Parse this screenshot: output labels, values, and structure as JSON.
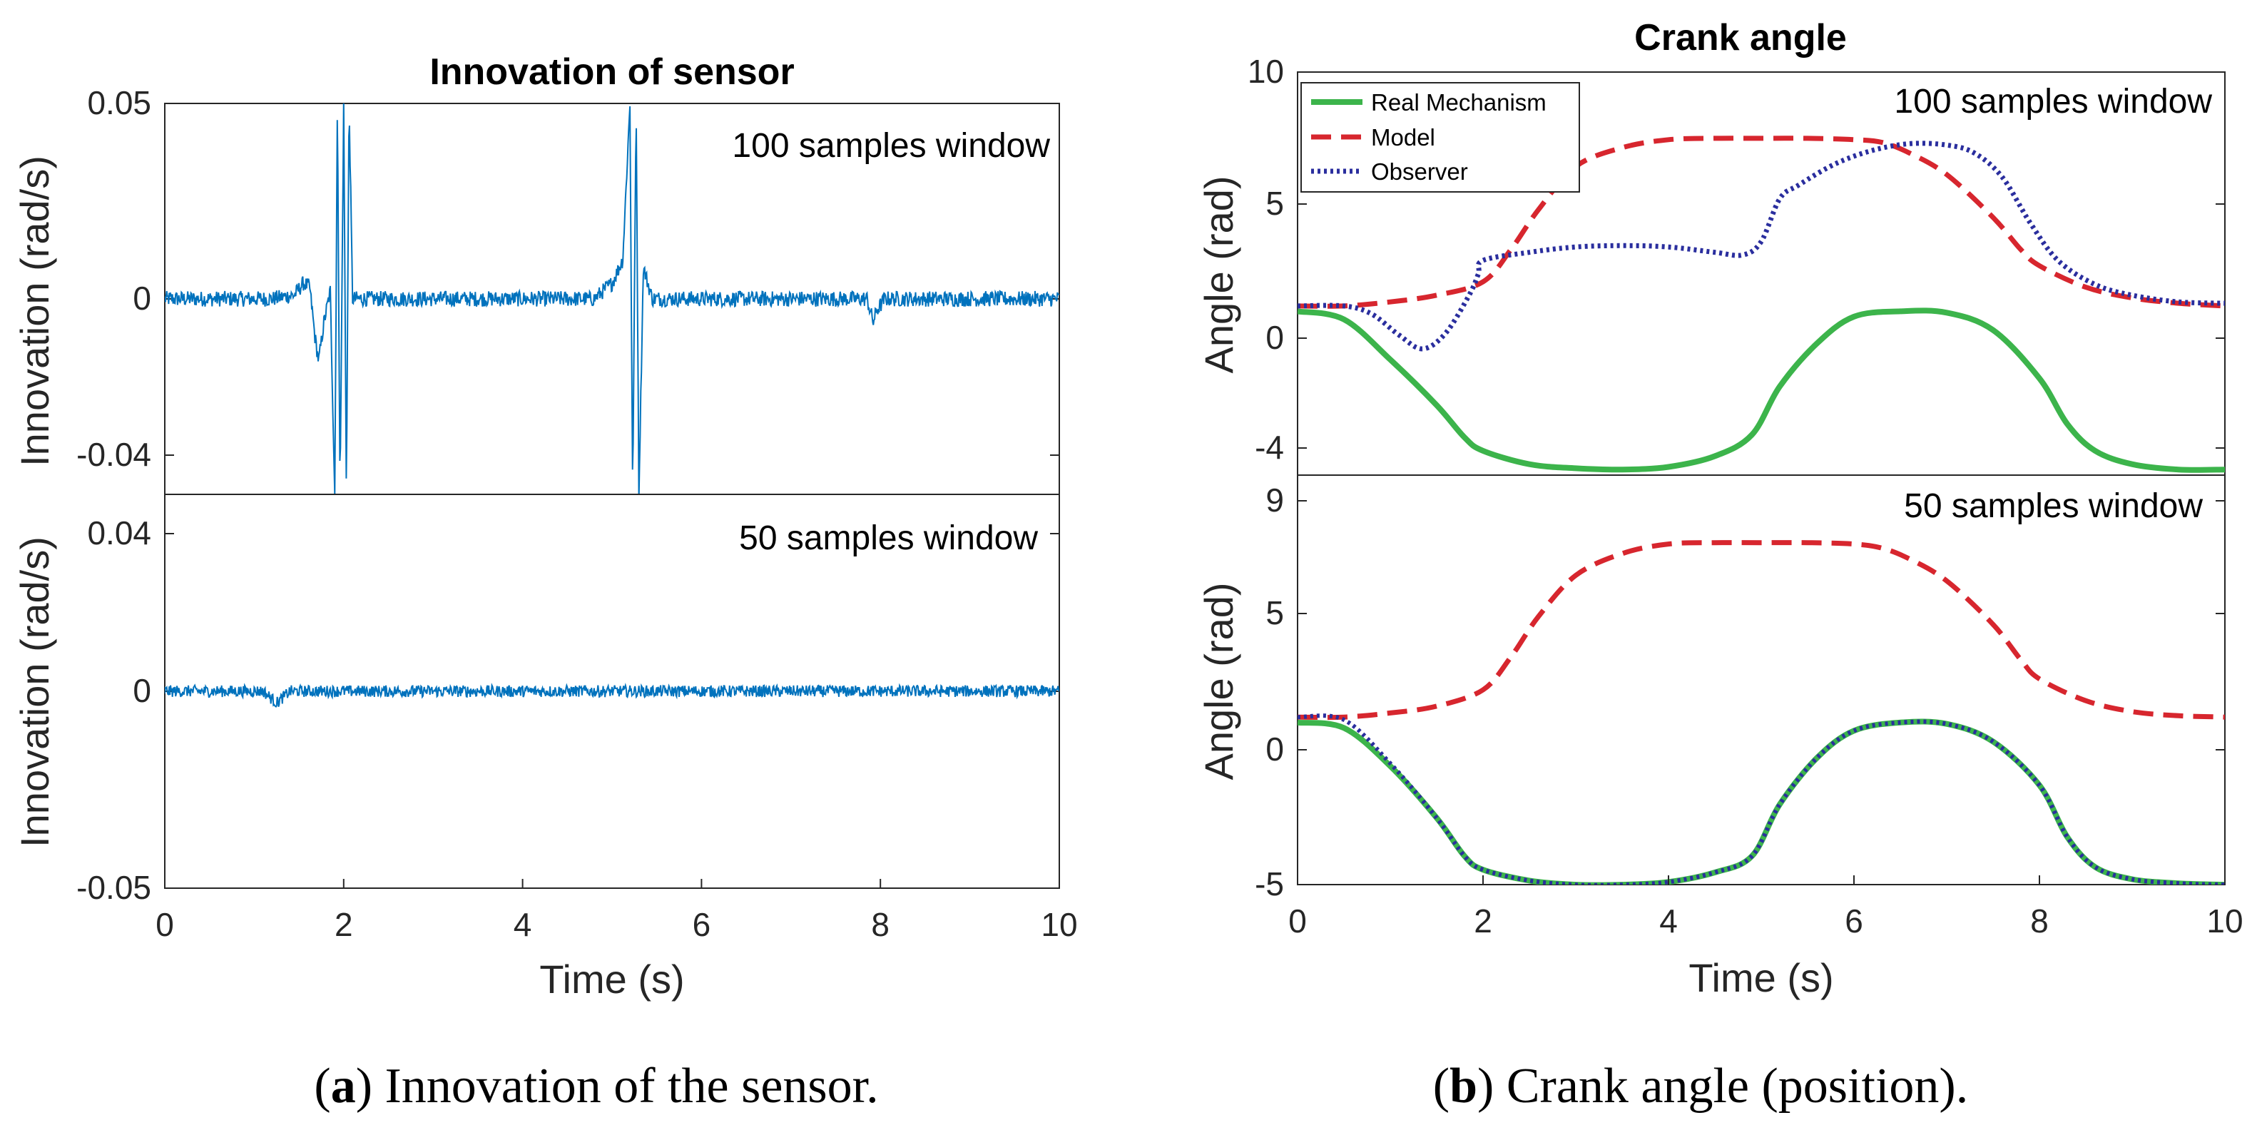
{
  "figure_a": {
    "caption_letter": "a",
    "caption_text": "Innovation of the sensor.",
    "title": "Innovation of sensor",
    "xlabel": "Time (s)",
    "x_ticks": [
      "0",
      "2",
      "4",
      "6",
      "8",
      "10"
    ],
    "top": {
      "window_label": "100 samples window",
      "ylabel": "Innovation (rad/s)",
      "y_ticks": [
        "0.05",
        "0",
        "-0.04"
      ]
    },
    "bottom": {
      "window_label": "50 samples window",
      "ylabel": "Innovation (rad/s)",
      "y_ticks": [
        "0.04",
        "0",
        "-0.05"
      ]
    }
  },
  "figure_b": {
    "caption_letter": "b",
    "caption_text": "Crank angle (position).",
    "title": "Crank angle",
    "xlabel": "Time (s)",
    "x_ticks": [
      "0",
      "2",
      "4",
      "6",
      "8",
      "10"
    ],
    "legend": [
      "Real Mechanism",
      "Model",
      "Observer"
    ],
    "top": {
      "window_label": "100 samples window",
      "ylabel": "Angle (rad)",
      "y_ticks": [
        "10",
        "5",
        "0",
        "-4"
      ]
    },
    "bottom": {
      "window_label": "50 samples window",
      "ylabel": "Angle (rad)",
      "y_ticks": [
        "9",
        "5",
        "0",
        "-5"
      ]
    }
  },
  "colors": {
    "innovation": "#0072BD",
    "real": "#3CB44B",
    "model": "#D7262E",
    "observer": "#2A2E9E",
    "axes": "#262626",
    "ticks": "#262626"
  },
  "chart_data": [
    {
      "type": "line",
      "title": "Innovation of sensor",
      "subtitle": "100 samples window",
      "xlabel": "Time (s)",
      "ylabel": "Innovation (rad/s)",
      "xlim": [
        0,
        10
      ],
      "ylim": [
        -0.05,
        0.05
      ],
      "grid": false,
      "series": [
        {
          "name": "Innovation",
          "noise_amplitude": 0.002,
          "x": [
            0,
            1.2,
            1.45,
            1.55,
            1.62,
            1.68,
            1.72,
            1.78,
            1.85,
            1.9,
            1.93,
            1.96,
            2.0,
            2.03,
            2.06,
            2.1,
            2.2,
            4.8,
            5.0,
            5.12,
            5.2,
            5.23,
            5.27,
            5.3,
            5.35,
            5.45,
            7.85,
            7.92,
            7.96,
            8.05,
            10
          ],
          "y": [
            0,
            0,
            0.001,
            0.004,
            0.003,
            -0.01,
            -0.016,
            -0.006,
            0.002,
            -0.05,
            0.05,
            -0.05,
            0.05,
            -0.05,
            0.05,
            0,
            0,
            0,
            0.004,
            0.01,
            0.05,
            -0.05,
            0.05,
            -0.05,
            0.008,
            0,
            0,
            -0.006,
            -0.003,
            0,
            0
          ]
        }
      ]
    },
    {
      "type": "line",
      "title": "Innovation of sensor",
      "subtitle": "50 samples window",
      "xlabel": "Time (s)",
      "ylabel": "Innovation (rad/s)",
      "xlim": [
        0,
        10
      ],
      "ylim": [
        -0.05,
        0.05
      ],
      "grid": false,
      "series": [
        {
          "name": "Innovation",
          "noise_amplitude": 0.0015,
          "x": [
            0,
            1.1,
            1.2,
            1.25,
            1.3,
            1.4,
            10
          ],
          "y": [
            0,
            0,
            -0.002,
            -0.003,
            -0.002,
            0,
            0
          ]
        }
      ]
    },
    {
      "type": "line",
      "title": "Crank angle",
      "subtitle": "100 samples window",
      "xlabel": "Time (s)",
      "ylabel": "Angle (rad)",
      "xlim": [
        0,
        10
      ],
      "ylim": [
        -4.8,
        10
      ],
      "grid": false,
      "legend_position": "top-left",
      "series": [
        {
          "name": "Real Mechanism",
          "x": [
            0,
            0.5,
            1.0,
            1.5,
            1.8,
            2.0,
            2.5,
            3.0,
            3.5,
            4.0,
            4.5,
            4.9,
            5.2,
            5.6,
            6.0,
            6.5,
            7.0,
            7.5,
            8.0,
            8.3,
            8.6,
            9.0,
            9.5,
            10
          ],
          "y": [
            1.0,
            0.7,
            -0.8,
            -2.5,
            -3.7,
            -4.2,
            -4.7,
            -4.85,
            -4.9,
            -4.8,
            -4.4,
            -3.6,
            -1.8,
            -0.2,
            0.8,
            1.0,
            0.95,
            0.3,
            -1.5,
            -3.2,
            -4.2,
            -4.7,
            -4.9,
            -4.9
          ]
        },
        {
          "name": "Model",
          "x": [
            0,
            0.5,
            1.0,
            1.5,
            2.0,
            2.3,
            2.6,
            3.0,
            3.5,
            4.0,
            4.5,
            5.0,
            5.5,
            6.0,
            6.3,
            6.6,
            7.0,
            7.5,
            7.8,
            8.0,
            8.5,
            9.0,
            9.5,
            10
          ],
          "y": [
            1.2,
            1.2,
            1.35,
            1.6,
            2.1,
            3.3,
            4.8,
            6.4,
            7.1,
            7.4,
            7.45,
            7.45,
            7.45,
            7.4,
            7.3,
            6.9,
            6.1,
            4.5,
            3.3,
            2.7,
            1.9,
            1.5,
            1.3,
            1.2
          ]
        },
        {
          "name": "Observer",
          "x": [
            0,
            0.5,
            0.8,
            1.1,
            1.35,
            1.6,
            1.85,
            1.95,
            2.0,
            2.5,
            3.0,
            3.5,
            4.0,
            4.5,
            4.8,
            5.0,
            5.2,
            5.4,
            5.8,
            6.2,
            6.6,
            7.0,
            7.3,
            7.6,
            7.9,
            8.2,
            8.6,
            9.0,
            9.5,
            10
          ],
          "y": [
            1.2,
            1.2,
            0.9,
            0.1,
            -0.4,
            0.2,
            1.6,
            2.4,
            2.9,
            3.2,
            3.4,
            3.45,
            3.4,
            3.2,
            3.1,
            3.6,
            5.2,
            5.7,
            6.5,
            7.0,
            7.25,
            7.2,
            6.9,
            6.0,
            4.3,
            2.9,
            2.0,
            1.6,
            1.35,
            1.3
          ]
        }
      ]
    },
    {
      "type": "line",
      "title": "Crank angle",
      "subtitle": "50 samples window",
      "xlabel": "Time (s)",
      "ylabel": "Angle (rad)",
      "xlim": [
        0,
        10
      ],
      "ylim": [
        -5,
        9.5
      ],
      "grid": false,
      "series": [
        {
          "name": "Real Mechanism",
          "x": [
            0,
            0.5,
            1.0,
            1.5,
            1.8,
            2.0,
            2.5,
            3.0,
            3.5,
            4.0,
            4.5,
            4.9,
            5.2,
            5.6,
            6.0,
            6.5,
            7.0,
            7.5,
            8.0,
            8.3,
            8.6,
            9.0,
            9.5,
            10
          ],
          "y": [
            1.0,
            0.8,
            -0.6,
            -2.5,
            -3.9,
            -4.4,
            -4.8,
            -4.95,
            -4.95,
            -4.85,
            -4.5,
            -3.9,
            -2.0,
            -0.3,
            0.7,
            1.0,
            0.95,
            0.3,
            -1.3,
            -3.2,
            -4.3,
            -4.75,
            -4.9,
            -4.95
          ]
        },
        {
          "name": "Model",
          "x": [
            0,
            0.5,
            1.0,
            1.5,
            2.0,
            2.3,
            2.6,
            3.0,
            3.5,
            4.0,
            4.5,
            5.0,
            5.5,
            6.0,
            6.3,
            6.6,
            7.0,
            7.5,
            7.8,
            8.0,
            8.5,
            9.0,
            9.5,
            10
          ],
          "y": [
            1.2,
            1.2,
            1.35,
            1.6,
            2.2,
            3.4,
            4.9,
            6.4,
            7.2,
            7.55,
            7.6,
            7.6,
            7.6,
            7.55,
            7.4,
            7.0,
            6.2,
            4.6,
            3.3,
            2.6,
            1.8,
            1.4,
            1.25,
            1.2
          ]
        },
        {
          "name": "Observer",
          "x": [
            0,
            0.5,
            1.0,
            1.5,
            1.8,
            2.0,
            2.5,
            3.0,
            3.5,
            4.0,
            4.5,
            4.9,
            5.2,
            5.6,
            6.0,
            6.5,
            7.0,
            7.5,
            8.0,
            8.3,
            8.6,
            9.0,
            9.5,
            10
          ],
          "y": [
            1.2,
            1.1,
            -0.5,
            -2.5,
            -3.9,
            -4.4,
            -4.8,
            -4.95,
            -4.95,
            -4.85,
            -4.5,
            -3.9,
            -2.0,
            -0.3,
            0.7,
            1.0,
            0.95,
            0.3,
            -1.3,
            -3.2,
            -4.3,
            -4.75,
            -4.9,
            -4.95
          ]
        }
      ]
    }
  ]
}
